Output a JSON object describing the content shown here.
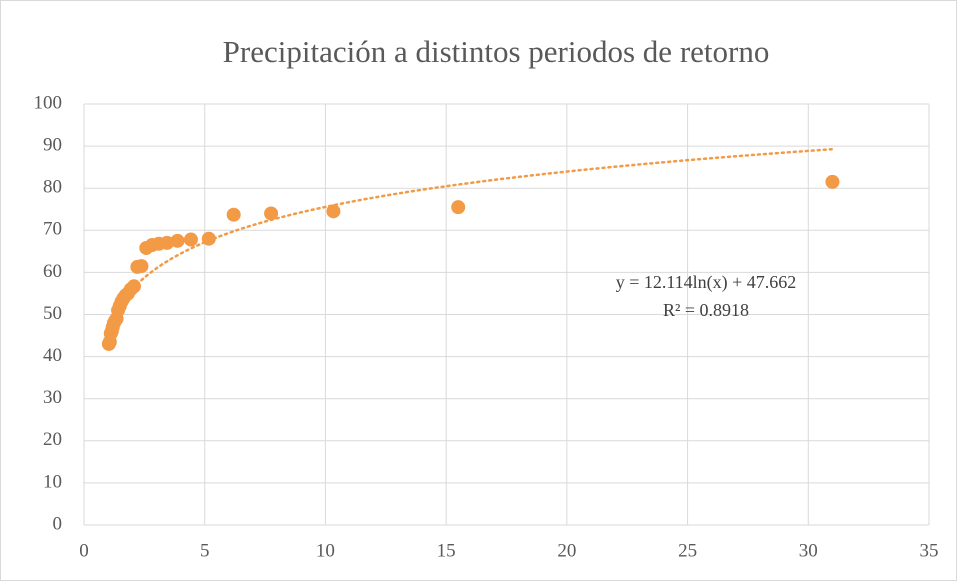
{
  "chart_data": {
    "type": "scatter",
    "title": "Precipitación a distintos periodos de retorno",
    "color": "#f29a45",
    "x": [
      31,
      15.5,
      10.33,
      7.75,
      6.2,
      5.17,
      4.43,
      3.875,
      3.44,
      3.1,
      2.82,
      2.58,
      2.38,
      2.21,
      2.07,
      1.94,
      1.82,
      1.72,
      1.63,
      1.55,
      1.48,
      1.41,
      1.35,
      1.29,
      1.24,
      1.19,
      1.15,
      1.11,
      1.07,
      1.03
    ],
    "values": [
      81.5,
      75.5,
      74.5,
      74,
      73.7,
      68,
      67.8,
      67.5,
      67,
      66.8,
      66.5,
      65.8,
      61.5,
      61.3,
      56.7,
      56,
      55,
      54.5,
      53.8,
      53,
      52,
      51,
      49,
      48.5,
      48,
      47,
      46,
      45.5,
      43.5,
      43
    ],
    "xlim": [
      0,
      35
    ],
    "xticks": [
      0,
      5,
      10,
      15,
      20,
      25,
      30,
      35
    ],
    "ylim": [
      0,
      100
    ],
    "yticks": [
      0,
      10,
      20,
      30,
      40,
      50,
      60,
      70,
      80,
      90,
      100
    ],
    "grid": true,
    "trendline": {
      "type": "log",
      "a": 12.114,
      "b": 47.662,
      "equation": "y = 12.114ln(x) + 47.662",
      "r2_label": "R² = 0.8918"
    }
  }
}
